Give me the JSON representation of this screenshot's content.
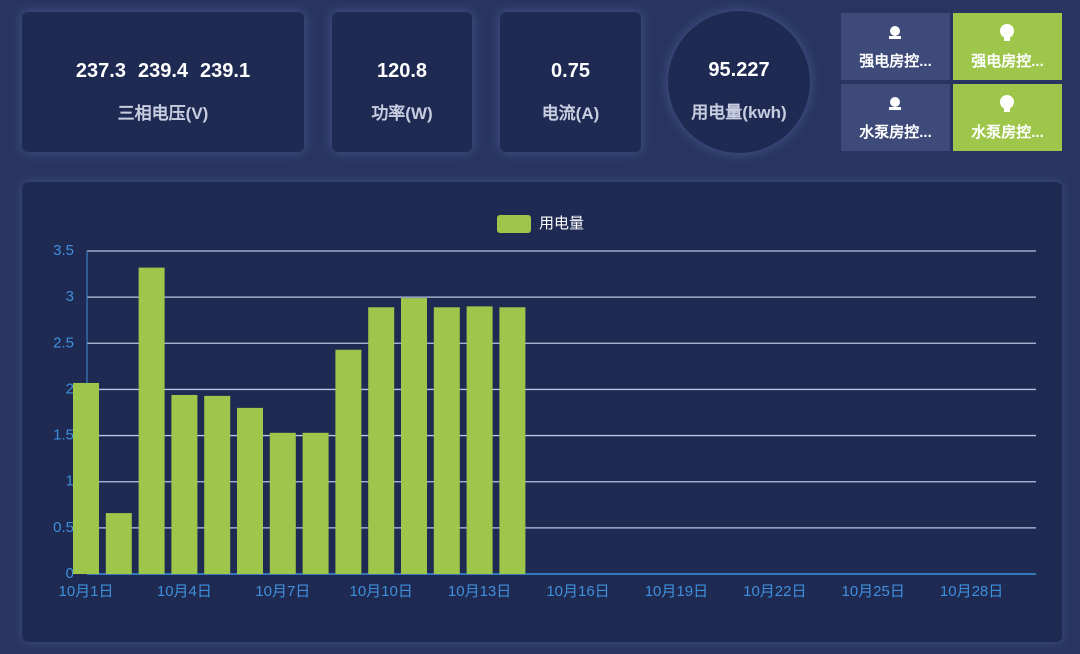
{
  "cards": [
    {
      "values": [
        237.3,
        239.4,
        239.1
      ],
      "label": "三相电压(V)"
    },
    {
      "values": [
        120.8
      ],
      "label": "功率(W)"
    },
    {
      "values": [
        0.75
      ],
      "label": "电流(A)"
    },
    {
      "values": [
        95.227
      ],
      "label": "用电量(kwh)"
    }
  ],
  "buttons": [
    {
      "label": "强电房控..."
    },
    {
      "label": "强电房控..."
    },
    {
      "label": "水泵房控..."
    },
    {
      "label": "水泵房控..."
    }
  ],
  "chart_data": {
    "type": "bar",
    "categories": [
      "10月1日",
      null,
      null,
      "10月4日",
      null,
      null,
      "10月7日",
      null,
      null,
      "10月10日",
      null,
      null,
      "10月13日",
      null,
      null,
      "10月16日",
      null,
      null,
      "10月19日",
      null,
      null,
      "10月22日",
      null,
      null,
      "10月25日",
      null,
      null,
      "10月28日",
      null,
      null
    ],
    "series": [
      {
        "name": "用电量",
        "color": "#9dc64a",
        "values": [
          2.07,
          0.66,
          3.32,
          1.94,
          1.93,
          1.8,
          1.53,
          1.53,
          2.43,
          2.89,
          2.99,
          2.89,
          2.9,
          2.89,
          null,
          null,
          null,
          null,
          null,
          null,
          null,
          null,
          null,
          null,
          null,
          null,
          null,
          null,
          null,
          null
        ]
      }
    ],
    "ylim": [
      0,
      3.5
    ],
    "yticks": [
      0,
      0.5,
      1,
      1.5,
      2,
      2.5,
      3,
      3.5
    ],
    "grid": true,
    "legend": "top"
  }
}
